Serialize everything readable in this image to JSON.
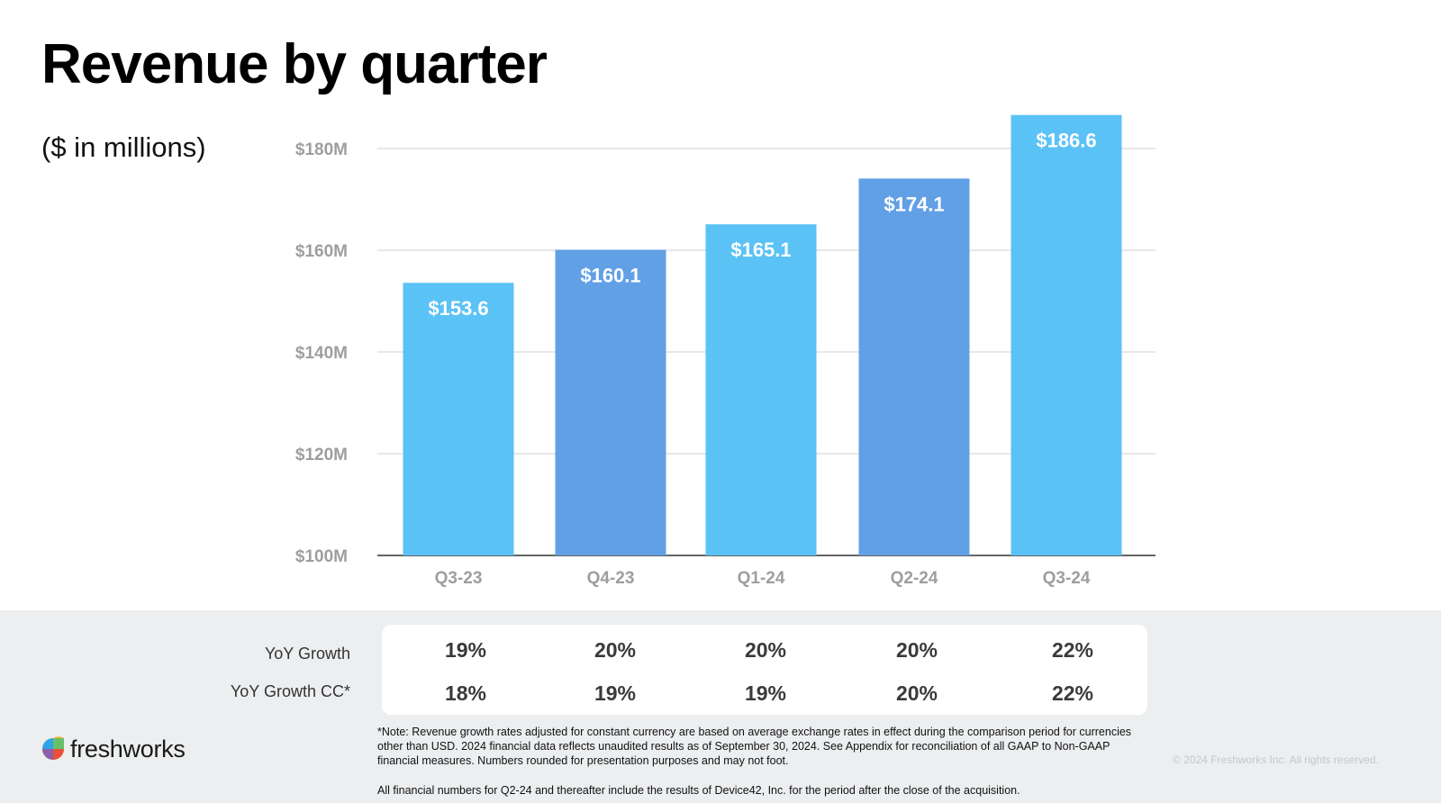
{
  "title": "Revenue by quarter",
  "subtitle": "($ in millions)",
  "chart_data": {
    "type": "bar",
    "title": "Revenue by quarter",
    "ylabel": "($ in millions)",
    "xlabel": "",
    "categories": [
      "Q3-23",
      "Q4-23",
      "Q1-24",
      "Q2-24",
      "Q3-24"
    ],
    "values": [
      153.6,
      160.1,
      165.1,
      174.1,
      186.6
    ],
    "data_labels": [
      "$153.6",
      "$160.1",
      "$165.1",
      "$174.1",
      "$186.6"
    ],
    "ylim": [
      100,
      186.6
    ],
    "yticks": [
      100,
      120,
      140,
      160,
      180
    ],
    "ytick_labels": [
      "$100M",
      "$120M",
      "$140M",
      "$160M",
      "$180M"
    ],
    "grid": true,
    "colors": [
      "#5bc2f5",
      "#62a0e6",
      "#5bc2f5",
      "#62a0e6",
      "#5bc2f5"
    ]
  },
  "growth_table": {
    "rows": [
      {
        "label": "YoY Growth",
        "values": [
          "19%",
          "20%",
          "20%",
          "20%",
          "22%"
        ]
      },
      {
        "label": "YoY Growth CC*",
        "values": [
          "18%",
          "19%",
          "19%",
          "20%",
          "22%"
        ]
      }
    ]
  },
  "footer": {
    "brand": "freshworks",
    "note": "*Note: Revenue growth rates adjusted for constant currency are based on average exchange rates in effect during the comparison period for currencies other than USD. 2024 financial data reflects unaudited results as of September 30, 2024. See Appendix for reconciliation of all GAAP to Non-GAAP financial measures. Numbers rounded for presentation purposes and may not foot.",
    "note2": "All financial numbers for Q2-24 and thereafter include the results of Device42, Inc. for the period after the close of the acquisition.",
    "copyright": "© 2024 Freshworks Inc. All rights reserved."
  }
}
